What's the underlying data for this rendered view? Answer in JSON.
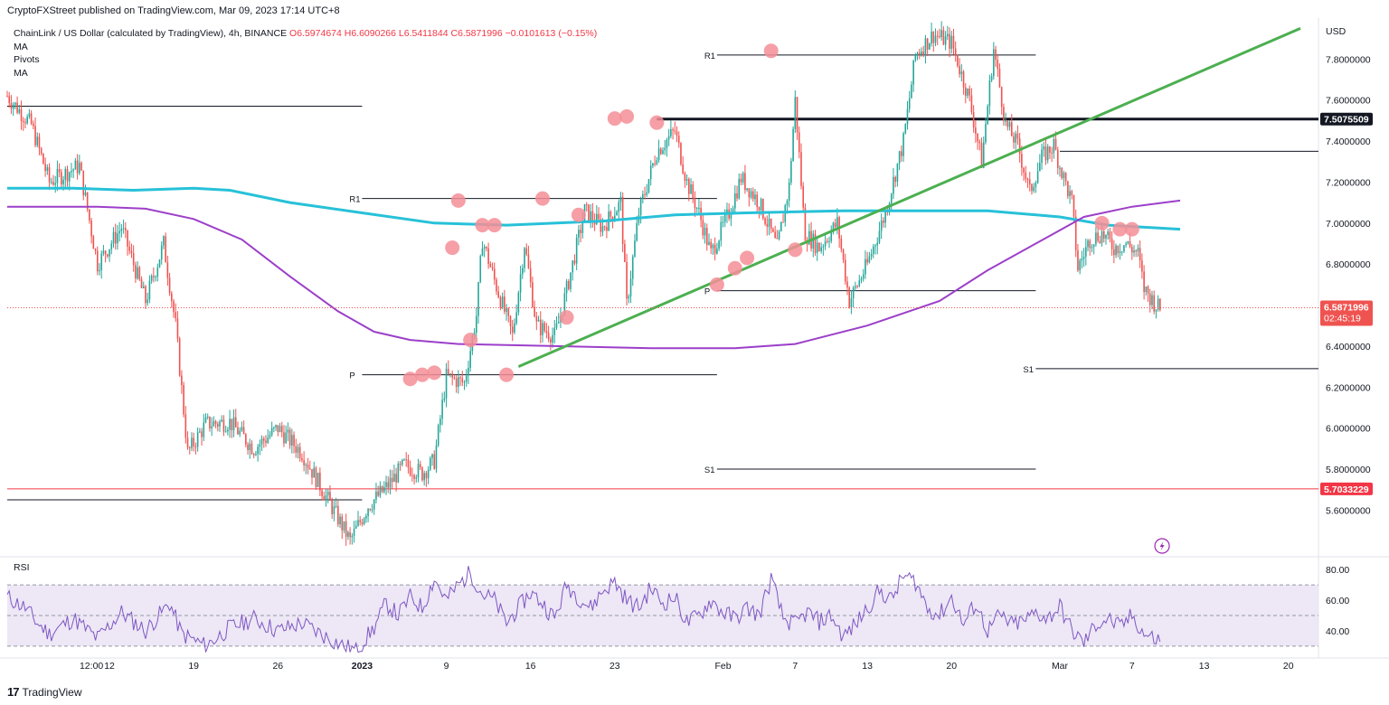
{
  "header": {
    "published": "CryptoFXStreet published on TradingView.com, Mar 09, 2023 17:14 UTC+8",
    "symbol": "ChainLink / US Dollar (calculated by TradingView), 4h, BINANCE",
    "ohlc": "O6.5974674  H6.6090266  L6.5411844  C6.5871996  −0.0101613 (−0.15%)",
    "indicators": [
      "MA",
      "Pivots",
      "MA"
    ]
  },
  "footer": {
    "brand": "TradingView",
    "logo": "17"
  },
  "colors": {
    "up": "#26a69a",
    "down": "#ef5350",
    "ma200": "#27c1d8",
    "ma_long": "#9c3fc9",
    "trendline": "#4caf50",
    "markers": "#f48e97",
    "rsi": "#7e57c2",
    "rsi_band": "#ede7f6",
    "support_line": "#f23645"
  },
  "chart_data": [
    {
      "type": "candlestick",
      "title": "ChainLink / US Dollar (calculated by TradingView), 4h, BINANCE",
      "price_axis": {
        "label": "USD",
        "ticks": [
          "7.8000000",
          "7.6000000",
          "7.4000000",
          "7.2000000",
          "7.0000000",
          "6.8000000",
          "6.6000000",
          "6.4000000",
          "6.2000000",
          "6.0000000",
          "5.8000000",
          "5.6000000"
        ],
        "tick_values": [
          7.8,
          7.6,
          7.4,
          7.2,
          7.0,
          6.8,
          6.6,
          6.4,
          6.2,
          6.0,
          5.8,
          5.6
        ],
        "range": [
          5.39,
          8.0
        ]
      },
      "time_axis": {
        "ticks": [
          "12:00",
          "12",
          "19",
          "26",
          "2023",
          "9",
          "16",
          "23",
          "Feb",
          "7",
          "13",
          "20",
          "Mar",
          "7",
          "13",
          "20"
        ],
        "tick_days": [
          1.5,
          3,
          10,
          17,
          24,
          31,
          38,
          45,
          54,
          60,
          66,
          73,
          82,
          88,
          94,
          101
        ],
        "range_days": [
          -5.5,
          103.5
        ]
      },
      "anchor_points": [
        [
          -5.5,
          7.62
        ],
        [
          -3.5,
          7.48
        ],
        [
          -2,
          7.2
        ],
        [
          0.5,
          7.28
        ],
        [
          2,
          6.8
        ],
        [
          4,
          6.98
        ],
        [
          6,
          6.62
        ],
        [
          7.5,
          6.9
        ],
        [
          8.5,
          6.5
        ],
        [
          9.5,
          5.88
        ],
        [
          11,
          6.02
        ],
        [
          13,
          6.03
        ],
        [
          15,
          5.9
        ],
        [
          17,
          6.0
        ],
        [
          19,
          5.88
        ],
        [
          20.5,
          5.72
        ],
        [
          22,
          5.56
        ],
        [
          23,
          5.45
        ],
        [
          24.5,
          5.62
        ],
        [
          26,
          5.71
        ],
        [
          27.5,
          5.82
        ],
        [
          29,
          5.78
        ],
        [
          30,
          5.84
        ],
        [
          31,
          6.25
        ],
        [
          32.5,
          6.22
        ],
        [
          33.5,
          6.55
        ],
        [
          34,
          6.92
        ],
        [
          35,
          6.72
        ],
        [
          36.5,
          6.45
        ],
        [
          37.5,
          6.9
        ],
        [
          38.5,
          6.5
        ],
        [
          40,
          6.45
        ],
        [
          40.5,
          6.55
        ],
        [
          41.5,
          6.8
        ],
        [
          42.5,
          7.06
        ],
        [
          44,
          6.98
        ],
        [
          45.5,
          7.1
        ],
        [
          46,
          6.6
        ],
        [
          47,
          7.05
        ],
        [
          48.5,
          7.35
        ],
        [
          50,
          7.45
        ],
        [
          51,
          7.2
        ],
        [
          52,
          7.05
        ],
        [
          53,
          6.85
        ],
        [
          54.5,
          7.05
        ],
        [
          55.5,
          7.22
        ],
        [
          57,
          7.1
        ],
        [
          58.5,
          6.88
        ],
        [
          59.5,
          7.18
        ],
        [
          60,
          7.6
        ],
        [
          60.8,
          6.95
        ],
        [
          62,
          6.88
        ],
        [
          63.5,
          7.0
        ],
        [
          64.5,
          6.62
        ],
        [
          66,
          6.8
        ],
        [
          67.5,
          7.05
        ],
        [
          69,
          7.4
        ],
        [
          70,
          7.82
        ],
        [
          71.5,
          7.92
        ],
        [
          73,
          7.88
        ],
        [
          74.5,
          7.6
        ],
        [
          75.5,
          7.3
        ],
        [
          76.5,
          7.85
        ],
        [
          77.5,
          7.48
        ],
        [
          78.5,
          7.38
        ],
        [
          79.5,
          7.15
        ],
        [
          80.5,
          7.32
        ],
        [
          81.5,
          7.38
        ],
        [
          82,
          7.28
        ],
        [
          83,
          7.1
        ],
        [
          83.5,
          6.78
        ],
        [
          84.5,
          6.92
        ],
        [
          85.5,
          6.95
        ],
        [
          86.5,
          6.88
        ],
        [
          87.5,
          6.9
        ],
        [
          88.5,
          6.85
        ],
        [
          89,
          6.68
        ],
        [
          90,
          6.6
        ],
        [
          90.5,
          6.57
        ]
      ],
      "current_price": {
        "value": 6.5871996,
        "label": "6.5871996",
        "countdown": "02:45:19"
      },
      "price_labels": [
        {
          "value": 7.5075509,
          "label": "7.5075509",
          "style": "black"
        },
        {
          "value": 5.7033229,
          "label": "5.7033229",
          "style": "red"
        }
      ],
      "horizontal_lines": [
        {
          "name": "prior-resistance",
          "value": 7.57,
          "x": [
            -5.5,
            24
          ],
          "width": 1
        },
        {
          "name": "prior-support",
          "value": 5.65,
          "x": [
            -5.5,
            24
          ],
          "width": 1
        },
        {
          "name": "key-resistance",
          "value": 7.5075509,
          "x": [
            48.5,
            103.5
          ],
          "width": 3
        },
        {
          "name": "key-support",
          "value": 5.7033229,
          "x": [
            -5.5,
            103.5
          ],
          "width": 1,
          "color": "red"
        },
        {
          "name": "level-740",
          "value": 7.35,
          "x": [
            82,
            103.5
          ],
          "width": 1
        }
      ],
      "pivots": [
        {
          "label": "R1",
          "value": 7.12,
          "x": [
            24,
            53.5
          ]
        },
        {
          "label": "P",
          "value": 6.26,
          "x": [
            24,
            53.5
          ]
        },
        {
          "label": "R1",
          "value": 7.82,
          "x": [
            53.5,
            80
          ]
        },
        {
          "label": "P",
          "value": 6.67,
          "x": [
            53.5,
            80
          ]
        },
        {
          "label": "S1",
          "value": 5.8,
          "x": [
            53.5,
            80
          ]
        },
        {
          "label": "S1",
          "value": 6.29,
          "x": [
            80,
            103.5
          ]
        }
      ],
      "ma_short": [
        [
          -5.5,
          7.17
        ],
        [
          0,
          7.17
        ],
        [
          5,
          7.16
        ],
        [
          10,
          7.17
        ],
        [
          13,
          7.16
        ],
        [
          18,
          7.1
        ],
        [
          24,
          7.05
        ],
        [
          30,
          7.0
        ],
        [
          36,
          6.99
        ],
        [
          44,
          7.01
        ],
        [
          50,
          7.04
        ],
        [
          56,
          7.05
        ],
        [
          64,
          7.06
        ],
        [
          70,
          7.06
        ],
        [
          76,
          7.06
        ],
        [
          82,
          7.03
        ],
        [
          86,
          6.99
        ],
        [
          89,
          6.98
        ],
        [
          92,
          6.97
        ]
      ],
      "ma_long": [
        [
          -5.5,
          7.08
        ],
        [
          2,
          7.08
        ],
        [
          6,
          7.07
        ],
        [
          10,
          7.02
        ],
        [
          14,
          6.92
        ],
        [
          18,
          6.74
        ],
        [
          22,
          6.57
        ],
        [
          25,
          6.47
        ],
        [
          28,
          6.43
        ],
        [
          32,
          6.41
        ],
        [
          40,
          6.4
        ],
        [
          48,
          6.39
        ],
        [
          55,
          6.39
        ],
        [
          60,
          6.41
        ],
        [
          66,
          6.5
        ],
        [
          72,
          6.62
        ],
        [
          76,
          6.77
        ],
        [
          80,
          6.9
        ],
        [
          84,
          7.03
        ],
        [
          88,
          7.08
        ],
        [
          92,
          7.11
        ]
      ],
      "trendline": {
        "from": [
          37,
          6.3
        ],
        "to": [
          102,
          7.95
        ]
      },
      "markers": [
        [
          28,
          6.24
        ],
        [
          29,
          6.26
        ],
        [
          30,
          6.27
        ],
        [
          31.5,
          6.88
        ],
        [
          32,
          7.11
        ],
        [
          33,
          6.43
        ],
        [
          34,
          6.99
        ],
        [
          35,
          6.99
        ],
        [
          36,
          6.26
        ],
        [
          39,
          7.12
        ],
        [
          41,
          6.54
        ],
        [
          42,
          7.04
        ],
        [
          45,
          7.51
        ],
        [
          46,
          7.52
        ],
        [
          48.5,
          7.49
        ],
        [
          53.5,
          6.7
        ],
        [
          55,
          6.78
        ],
        [
          56,
          6.83
        ],
        [
          58,
          7.84
        ],
        [
          60,
          6.87
        ],
        [
          85.5,
          7.0
        ],
        [
          87,
          6.97
        ],
        [
          88,
          6.97
        ]
      ],
      "chart_labels": {
        "axis_unit": "USD"
      }
    },
    {
      "type": "line",
      "title": "RSI",
      "y_axis": {
        "ticks": [
          "80.00",
          "60.00",
          "40.00"
        ],
        "tick_values": [
          80,
          60,
          40
        ],
        "range": [
          24,
          86
        ]
      },
      "band": [
        30,
        70
      ],
      "midline": 50,
      "anchor_points": [
        [
          -5.5,
          62
        ],
        [
          -4,
          55
        ],
        [
          -3,
          45
        ],
        [
          -2,
          38
        ],
        [
          0,
          48
        ],
        [
          2,
          35
        ],
        [
          4,
          52
        ],
        [
          6,
          40
        ],
        [
          8,
          58
        ],
        [
          9,
          38
        ],
        [
          11,
          30
        ],
        [
          13,
          42
        ],
        [
          15,
          48
        ],
        [
          17,
          40
        ],
        [
          19,
          45
        ],
        [
          21,
          36
        ],
        [
          22.5,
          30
        ],
        [
          23.5,
          27
        ],
        [
          25,
          42
        ],
        [
          26,
          58
        ],
        [
          27,
          50
        ],
        [
          28,
          62
        ],
        [
          29,
          55
        ],
        [
          30,
          74
        ],
        [
          31,
          60
        ],
        [
          32,
          70
        ],
        [
          33,
          78
        ],
        [
          34,
          64
        ],
        [
          35,
          60
        ],
        [
          36,
          45
        ],
        [
          37,
          55
        ],
        [
          38,
          65
        ],
        [
          39,
          58
        ],
        [
          40,
          48
        ],
        [
          41,
          70
        ],
        [
          42,
          62
        ],
        [
          43,
          55
        ],
        [
          44,
          66
        ],
        [
          45,
          72
        ],
        [
          46,
          60
        ],
        [
          47,
          55
        ],
        [
          48,
          68
        ],
        [
          49,
          58
        ],
        [
          50,
          62
        ],
        [
          51,
          45
        ],
        [
          52,
          50
        ],
        [
          53,
          60
        ],
        [
          54,
          52
        ],
        [
          55,
          48
        ],
        [
          56,
          55
        ],
        [
          57,
          50
        ],
        [
          58,
          74
        ],
        [
          59,
          48
        ],
        [
          60,
          44
        ],
        [
          61,
          52
        ],
        [
          62,
          46
        ],
        [
          63,
          50
        ],
        [
          64,
          36
        ],
        [
          65,
          44
        ],
        [
          66,
          55
        ],
        [
          67,
          66
        ],
        [
          68,
          60
        ],
        [
          69,
          76
        ],
        [
          70,
          72
        ],
        [
          71,
          55
        ],
        [
          72,
          50
        ],
        [
          73,
          62
        ],
        [
          74,
          44
        ],
        [
          75,
          58
        ],
        [
          76,
          40
        ],
        [
          77,
          50
        ],
        [
          78,
          44
        ],
        [
          79,
          46
        ],
        [
          80,
          52
        ],
        [
          81,
          48
        ],
        [
          82,
          56
        ],
        [
          83,
          40
        ],
        [
          84,
          32
        ],
        [
          85,
          44
        ],
        [
          86,
          48
        ],
        [
          87,
          42
        ],
        [
          88,
          50
        ],
        [
          89,
          38
        ],
        [
          90,
          34
        ],
        [
          90.5,
          35
        ]
      ],
      "extra_tick_labels": []
    }
  ]
}
